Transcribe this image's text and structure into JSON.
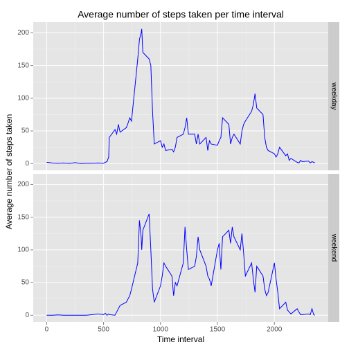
{
  "chart_data": {
    "type": "line",
    "title": "Average number of steps taken per time interval",
    "xlabel": "Time interval",
    "ylabel": "Average number of steps taken",
    "x": [
      0,
      50,
      100,
      150,
      200,
      250,
      300,
      350,
      400,
      450,
      500,
      515,
      530,
      545,
      550,
      600,
      615,
      630,
      645,
      700,
      715,
      730,
      745,
      800,
      815,
      830,
      835,
      845,
      900,
      915,
      930,
      945,
      1000,
      1015,
      1030,
      1045,
      1100,
      1115,
      1130,
      1145,
      1200,
      1215,
      1230,
      1245,
      1300,
      1315,
      1330,
      1345,
      1400,
      1415,
      1430,
      1445,
      1500,
      1515,
      1530,
      1545,
      1600,
      1615,
      1630,
      1645,
      1700,
      1715,
      1730,
      1745,
      1800,
      1815,
      1830,
      1845,
      1900,
      1915,
      1930,
      1945,
      2000,
      2015,
      2030,
      2045,
      2100,
      2115,
      2130,
      2145,
      2200,
      2215,
      2230,
      2245,
      2300,
      2315,
      2330,
      2345,
      2355
    ],
    "series": [
      {
        "name": "weekday",
        "color": "#0000ff",
        "values": [
          2,
          1,
          0.5,
          1,
          0.3,
          1.5,
          0.2,
          0.5,
          0.5,
          1,
          0.5,
          2,
          3,
          10,
          40,
          52,
          45,
          60,
          48,
          55,
          62,
          70,
          65,
          160,
          190,
          200,
          206,
          170,
          160,
          150,
          80,
          30,
          35,
          25,
          30,
          20,
          22,
          18,
          25,
          40,
          45,
          55,
          70,
          45,
          45,
          30,
          45,
          30,
          40,
          20,
          35,
          30,
          28,
          35,
          40,
          70,
          60,
          30,
          40,
          45,
          30,
          50,
          60,
          65,
          80,
          90,
          107,
          85,
          75,
          40,
          25,
          20,
          15,
          10,
          15,
          25,
          12,
          15,
          5,
          8,
          2,
          1,
          5,
          3,
          4,
          1,
          3,
          2,
          1
        ]
      },
      {
        "name": "weekend",
        "color": "#0000ff",
        "values": [
          0,
          0,
          0.5,
          0,
          0,
          0,
          0,
          0,
          1,
          2,
          1,
          3,
          0,
          2,
          1,
          0,
          5,
          10,
          15,
          20,
          25,
          30,
          40,
          80,
          145,
          120,
          100,
          130,
          155,
          100,
          40,
          20,
          45,
          60,
          80,
          75,
          60,
          30,
          50,
          45,
          80,
          135,
          100,
          70,
          75,
          90,
          120,
          100,
          75,
          60,
          55,
          45,
          100,
          110,
          70,
          120,
          130,
          110,
          135,
          120,
          100,
          125,
          95,
          60,
          80,
          55,
          35,
          75,
          60,
          40,
          30,
          35,
          80,
          55,
          35,
          10,
          20,
          8,
          5,
          2,
          10,
          5,
          1,
          1,
          2,
          1,
          10,
          1,
          0
        ]
      }
    ],
    "xlim": [
      -117.75,
      2472.75
    ],
    "xticks": [
      0,
      500,
      1000,
      1500,
      2000
    ],
    "ylim": [
      -10.3,
      216.3
    ],
    "yticks": [
      0,
      50,
      100,
      150,
      200
    ],
    "grid": true
  }
}
